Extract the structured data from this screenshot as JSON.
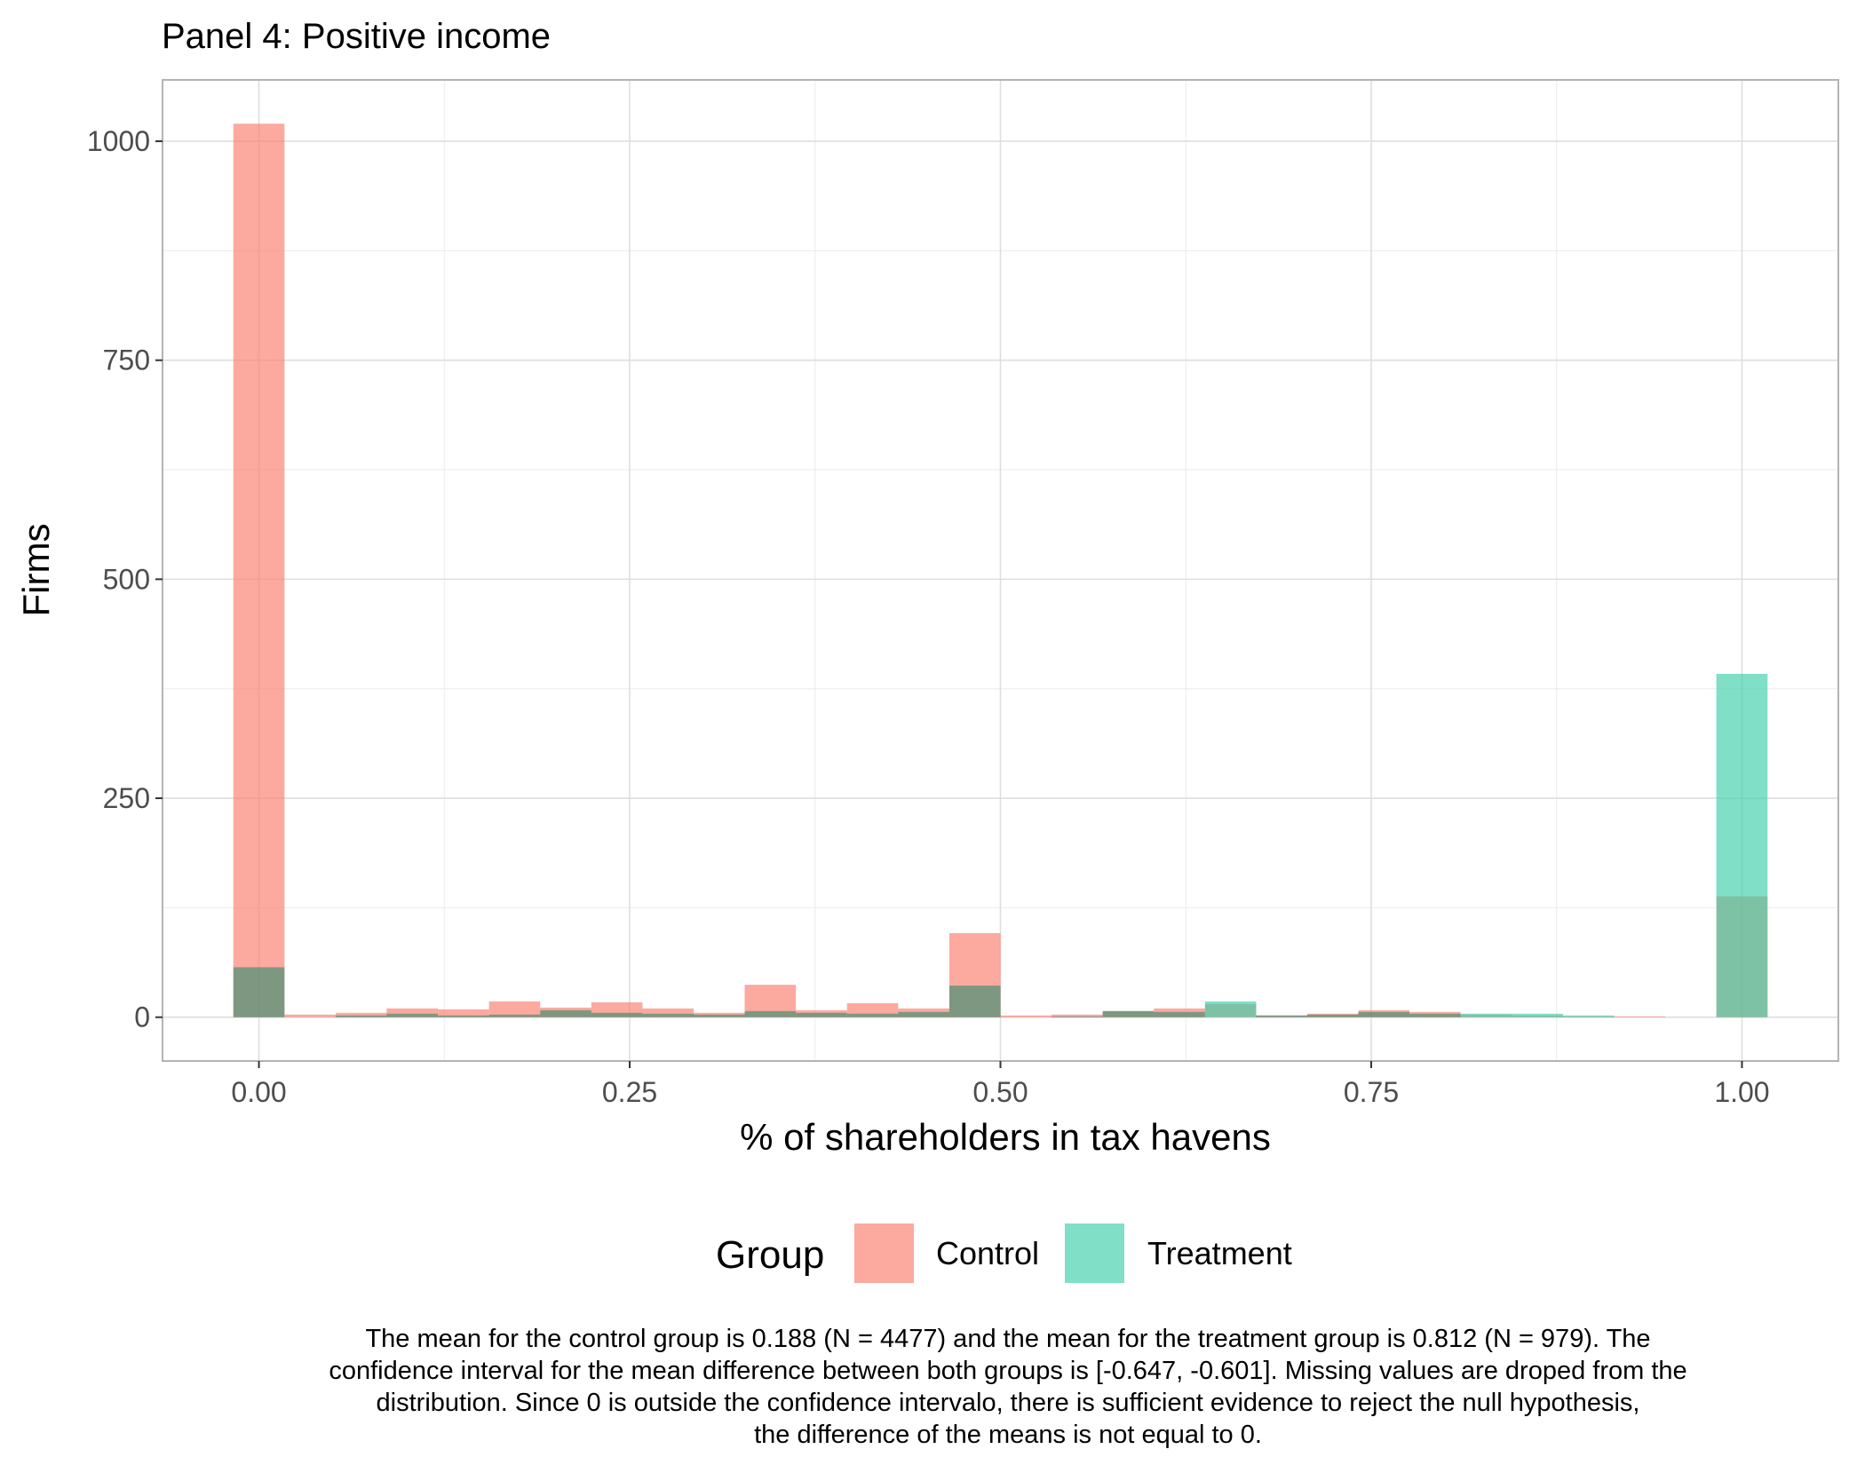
{
  "chart_data": {
    "type": "bar",
    "subtype": "histogram-overlay",
    "title": "Panel 4: Positive income",
    "xlabel": "% of shareholders in tax havens",
    "ylabel": "Firms",
    "xlim": [
      -0.065,
      1.065
    ],
    "ylim": [
      -50,
      1070
    ],
    "x_ticks": [
      0.0,
      0.25,
      0.5,
      0.75,
      1.0
    ],
    "x_tick_labels": [
      "0.00",
      "0.25",
      "0.50",
      "0.75",
      "1.00"
    ],
    "y_ticks": [
      0,
      250,
      500,
      750,
      1000
    ],
    "y_tick_labels": [
      "0",
      "250",
      "500",
      "750",
      "1000"
    ],
    "grid": true,
    "bin_width": 0.0345,
    "bins": [
      0.0,
      0.0345,
      0.069,
      0.1034,
      0.1379,
      0.1724,
      0.2069,
      0.2414,
      0.2759,
      0.3103,
      0.3448,
      0.3793,
      0.4138,
      0.4483,
      0.4828,
      0.5172,
      0.5517,
      0.5862,
      0.6207,
      0.6552,
      0.6897,
      0.7241,
      0.7586,
      0.7931,
      0.8276,
      0.8621,
      0.8966,
      0.931,
      0.9655,
      1.0
    ],
    "series": [
      {
        "name": "Control",
        "color": "#FA8072",
        "values": [
          1020,
          3,
          5,
          10,
          9,
          18,
          11,
          17,
          10,
          5,
          37,
          8,
          16,
          10,
          96,
          2,
          3,
          7,
          10,
          15,
          2,
          4,
          8,
          6,
          3,
          2,
          1,
          1,
          0,
          138
        ]
      },
      {
        "name": "Treatment",
        "color": "#3CCFAA",
        "values": [
          57,
          0,
          2,
          4,
          2,
          3,
          8,
          5,
          4,
          3,
          7,
          5,
          4,
          6,
          36,
          0,
          1,
          7,
          6,
          18,
          2,
          3,
          6,
          4,
          4,
          4,
          2,
          0,
          0,
          392
        ]
      }
    ],
    "legend": {
      "title": "Group",
      "position": "bottom",
      "entries": [
        "Control",
        "Treatment"
      ]
    }
  },
  "caption": {
    "lines": [
      "The mean for the control group is 0.188 (N = 4477) and the mean for the treatment group is 0.812 (N = 979). The",
      "confidence interval for the mean difference between both groups is [-0.647, -0.601]. Missing values are droped from the",
      "distribution. Since 0 is outside the confidence intervalo, there is sufficient evidence to reject the null hypothesis,",
      "the difference of the means is not equal to 0."
    ]
  }
}
